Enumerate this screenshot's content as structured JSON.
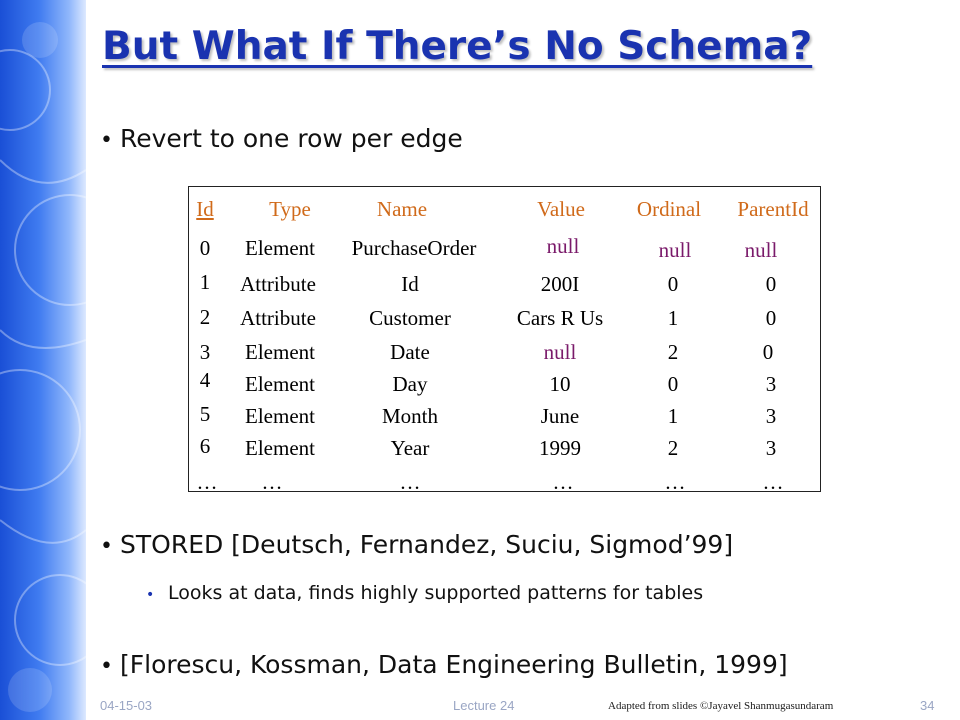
{
  "slide": {
    "title": "But What If There’s No Schema?",
    "bullets": [
      "Revert to one row per edge",
      "STORED [Deutsch, Fernandez, Suciu, Sigmod’99]",
      "[Florescu, Kossman, Data Engineering Bulletin, 1999]"
    ],
    "sub_bullets": [
      "Looks at data, finds highly supported patterns for tables"
    ],
    "bullet_glyph": "•"
  },
  "table": {
    "headers": [
      "Id",
      "Type",
      "Name",
      "Value",
      "Ordinal",
      "ParentId"
    ],
    "rows": [
      [
        "0",
        "Element",
        "PurchaseOrder",
        "null",
        "null",
        "null"
      ],
      [
        "1",
        "Attribute",
        "Id",
        "200I",
        "0",
        "0"
      ],
      [
        "2",
        "Attribute",
        "Customer",
        "Cars R Us",
        "1",
        "0"
      ],
      [
        "3",
        "Element",
        "Date",
        "null",
        "2",
        "0"
      ],
      [
        "4",
        "Element",
        "Day",
        "10",
        "0",
        "3"
      ],
      [
        "5",
        "Element",
        "Month",
        "June",
        "1",
        "3"
      ],
      [
        "6",
        "Element",
        "Year",
        "1999",
        "2",
        "3"
      ],
      [
        "…",
        "…",
        "…",
        "…",
        "…",
        "…"
      ]
    ]
  },
  "footer": {
    "date": "04-15-03",
    "lecture": "Lecture 24",
    "credit": "Adapted from slides ©Jayavel Shanmugasundaram",
    "page_number": "34"
  },
  "colors": {
    "title": "#1a33b0",
    "header_text": "#d06a1a",
    "null_text": "#7a1a6a",
    "sidebar": "#3f7bf0"
  }
}
